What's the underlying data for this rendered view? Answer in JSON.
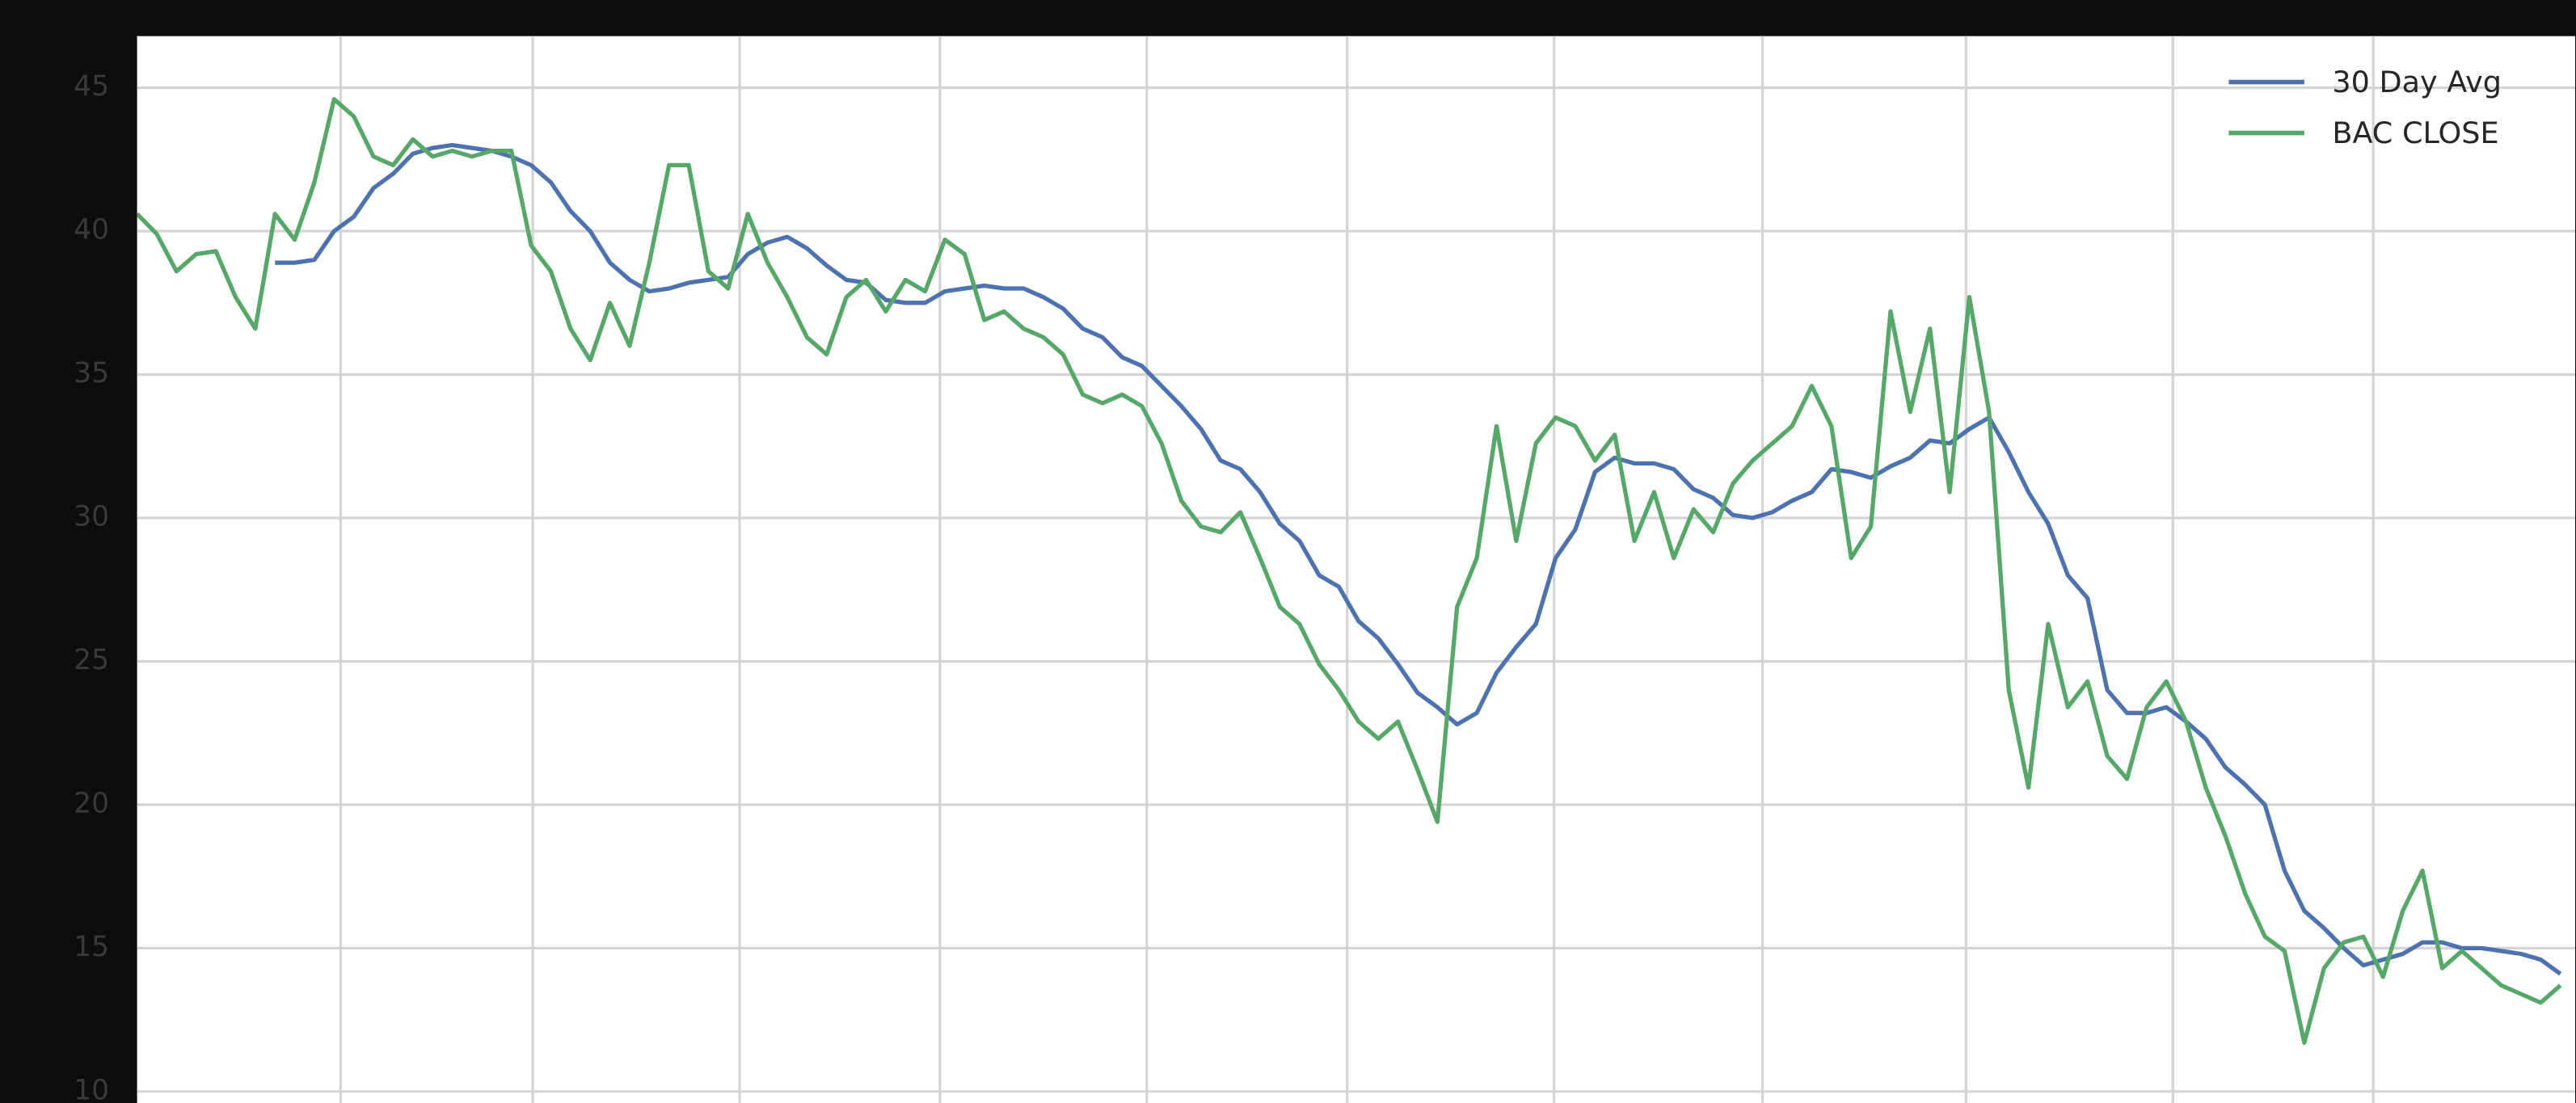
{
  "chart_data": {
    "type": "line",
    "ylim": [
      9.6,
      46.8
    ],
    "yticks": [
      10,
      15,
      20,
      25,
      30,
      35,
      40,
      45
    ],
    "grid": true,
    "legend": "upper right",
    "series": [
      {
        "name": "30 Day Avg",
        "color": "#4c72b0",
        "values": [
          null,
          null,
          null,
          null,
          null,
          null,
          null,
          38.9,
          38.9,
          39.0,
          40.0,
          40.5,
          41.5,
          42.0,
          42.7,
          42.9,
          43.0,
          42.9,
          42.8,
          42.6,
          42.3,
          41.7,
          40.7,
          40.0,
          38.9,
          38.3,
          37.9,
          38.0,
          38.2,
          38.3,
          38.4,
          39.2,
          39.6,
          39.8,
          39.4,
          38.8,
          38.3,
          38.2,
          37.6,
          37.5,
          37.5,
          37.9,
          38.0,
          38.1,
          38.0,
          38.0,
          37.7,
          37.3,
          36.6,
          36.3,
          35.6,
          35.3,
          34.6,
          33.9,
          33.1,
          32.0,
          31.7,
          30.9,
          29.8,
          29.2,
          28.0,
          27.6,
          26.4,
          25.8,
          24.9,
          23.9,
          23.4,
          22.8,
          23.2,
          24.6,
          25.5,
          26.3,
          28.6,
          29.6,
          31.6,
          32.1,
          31.9,
          31.9,
          31.7,
          31.0,
          30.7,
          30.1,
          30.0,
          30.2,
          30.6,
          30.9,
          31.7,
          31.6,
          31.4,
          31.8,
          32.1,
          32.7,
          32.6,
          33.1,
          33.5,
          32.3,
          30.9,
          29.8,
          28.0,
          27.2,
          24.0,
          23.2,
          23.2,
          23.4,
          22.9,
          22.3,
          21.3,
          20.7,
          20.0,
          17.7,
          16.3,
          15.7,
          15.0,
          14.4,
          14.6,
          14.8,
          15.2,
          15.2,
          15.0,
          15.0,
          14.9,
          14.8,
          14.6,
          14.1
        ]
      },
      {
        "name": "BAC CLOSE",
        "color": "#55a868",
        "values": [
          40.6,
          39.9,
          38.6,
          39.2,
          39.3,
          37.7,
          36.6,
          40.6,
          39.7,
          41.7,
          44.6,
          44.0,
          42.6,
          42.3,
          43.2,
          42.6,
          42.8,
          42.6,
          42.8,
          42.8,
          39.5,
          38.6,
          36.6,
          35.5,
          37.5,
          36.0,
          38.9,
          42.3,
          42.3,
          38.6,
          38.0,
          40.6,
          38.9,
          37.7,
          36.3,
          35.7,
          37.7,
          38.3,
          37.2,
          38.3,
          37.9,
          39.7,
          39.2,
          36.9,
          37.2,
          36.6,
          36.3,
          35.7,
          34.3,
          34.0,
          34.3,
          33.9,
          32.6,
          30.6,
          29.7,
          29.5,
          30.2,
          28.6,
          26.9,
          26.3,
          24.9,
          24.0,
          22.9,
          22.3,
          22.9,
          21.2,
          19.4,
          26.9,
          28.6,
          33.2,
          29.2,
          32.6,
          33.5,
          33.2,
          32.0,
          32.9,
          29.2,
          30.9,
          28.6,
          30.3,
          29.5,
          31.2,
          32.0,
          32.6,
          33.2,
          34.6,
          33.2,
          28.6,
          29.7,
          37.2,
          33.7,
          36.6,
          30.9,
          37.7,
          33.7,
          24.0,
          20.6,
          26.3,
          23.4,
          24.3,
          21.7,
          20.9,
          23.4,
          24.3,
          22.9,
          20.6,
          18.9,
          16.9,
          15.4,
          14.9,
          11.7,
          14.3,
          15.2,
          15.4,
          14.0,
          16.3,
          17.7,
          14.3,
          14.9,
          14.3,
          13.7,
          13.4,
          13.1,
          13.7
        ]
      }
    ]
  }
}
